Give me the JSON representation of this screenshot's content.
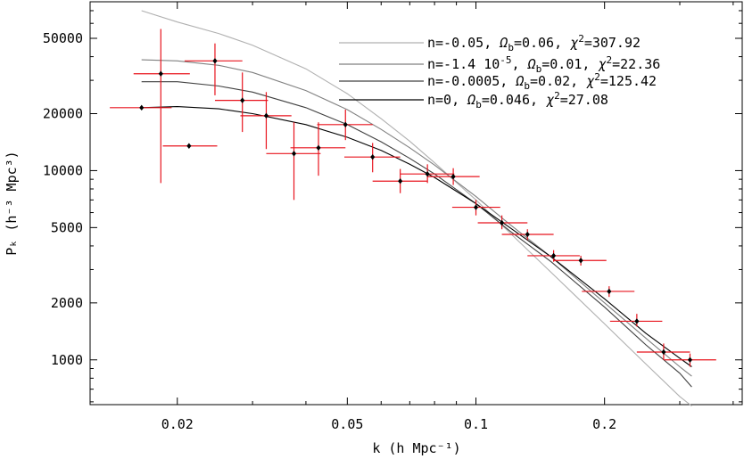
{
  "chart_data": {
    "type": "scatter",
    "x_scale": "log",
    "y_scale": "log",
    "xlim": [
      0.0125,
      0.42
    ],
    "ylim": [
      580,
      78000
    ],
    "xlabel": "k (h Mpc⁻¹)",
    "ylabel": "Pₖ (h⁻³ Mpc³)",
    "x_ticks": [
      0.02,
      0.05,
      0.1,
      0.2
    ],
    "x_tick_labels": [
      "0.02",
      "0.05",
      "0.1",
      "0.2"
    ],
    "y_ticks": [
      1000,
      2000,
      5000,
      10000,
      20000,
      50000
    ],
    "y_tick_labels": [
      "1000",
      "2000",
      "5000",
      "10000",
      "20000",
      "50000"
    ],
    "grid": false,
    "legend_position": "top-right",
    "points": [
      {
        "x": 0.0165,
        "y": 21500,
        "xerr": [
          0.0139,
          0.0194
        ],
        "yerr": [
          21500,
          21500
        ]
      },
      {
        "x": 0.0183,
        "y": 32500,
        "xerr": [
          0.0158,
          0.0214
        ],
        "yerr": [
          8600,
          56000
        ]
      },
      {
        "x": 0.0213,
        "y": 13500,
        "xerr": [
          0.0185,
          0.0248
        ],
        "yerr": [
          13500,
          13500
        ]
      },
      {
        "x": 0.0245,
        "y": 38000,
        "xerr": [
          0.0208,
          0.0284
        ],
        "yerr": [
          25000,
          47000
        ]
      },
      {
        "x": 0.0284,
        "y": 23500,
        "xerr": [
          0.0245,
          0.0326
        ],
        "yerr": [
          16000,
          33000
        ]
      },
      {
        "x": 0.0323,
        "y": 19500,
        "xerr": [
          0.0281,
          0.037
        ],
        "yerr": [
          13000,
          26000
        ]
      },
      {
        "x": 0.0375,
        "y": 12300,
        "xerr": [
          0.0323,
          0.0433
        ],
        "yerr": [
          7000,
          18000
        ]
      },
      {
        "x": 0.0428,
        "y": 13200,
        "xerr": [
          0.0368,
          0.0495
        ],
        "yerr": [
          9400,
          18000
        ]
      },
      {
        "x": 0.0495,
        "y": 17500,
        "xerr": [
          0.0425,
          0.0573
        ],
        "yerr": [
          14500,
          21000
        ]
      },
      {
        "x": 0.0573,
        "y": 11800,
        "xerr": [
          0.0492,
          0.0665
        ],
        "yerr": [
          9800,
          14000
        ]
      },
      {
        "x": 0.0665,
        "y": 8800,
        "xerr": [
          0.0573,
          0.077
        ],
        "yerr": [
          7600,
          10200
        ]
      },
      {
        "x": 0.077,
        "y": 9600,
        "xerr": [
          0.0665,
          0.089
        ],
        "yerr": [
          8600,
          10800
        ]
      },
      {
        "x": 0.0885,
        "y": 9300,
        "xerr": [
          0.077,
          0.102
        ],
        "yerr": [
          8400,
          10300
        ]
      },
      {
        "x": 0.1,
        "y": 6400,
        "xerr": [
          0.088,
          0.114
        ],
        "yerr": [
          5800,
          7000
        ]
      },
      {
        "x": 0.115,
        "y": 5300,
        "xerr": [
          0.101,
          0.132
        ],
        "yerr": [
          4900,
          5800
        ]
      },
      {
        "x": 0.132,
        "y": 4600,
        "xerr": [
          0.115,
          0.152
        ],
        "yerr": [
          4300,
          4900
        ]
      },
      {
        "x": 0.152,
        "y": 3550,
        "xerr": [
          0.132,
          0.175
        ],
        "yerr": [
          3300,
          3800
        ]
      },
      {
        "x": 0.176,
        "y": 3350,
        "xerr": [
          0.152,
          0.202
        ],
        "yerr": [
          3150,
          3550
        ]
      },
      {
        "x": 0.205,
        "y": 2300,
        "xerr": [
          0.177,
          0.235
        ],
        "yerr": [
          2150,
          2450
        ]
      },
      {
        "x": 0.238,
        "y": 1600,
        "xerr": [
          0.206,
          0.273
        ],
        "yerr": [
          1500,
          1750
        ]
      },
      {
        "x": 0.275,
        "y": 1100,
        "xerr": [
          0.238,
          0.317
        ],
        "yerr": [
          1000,
          1220
        ]
      },
      {
        "x": 0.317,
        "y": 1000,
        "xerr": [
          0.276,
          0.365
        ],
        "yerr": [
          920,
          1080
        ]
      }
    ],
    "series": [
      {
        "name": "n=-0.05, Ωb=0.06, χ²=307.92",
        "label_parts": [
          "n=-0.05, ",
          "Ω",
          "b",
          "=0.06, ",
          "χ",
          "2",
          "=307.92"
        ],
        "color": "#b0b0b0",
        "x": [
          0.0165,
          0.02,
          0.025,
          0.03,
          0.04,
          0.05,
          0.06,
          0.07,
          0.08,
          0.1,
          0.12,
          0.15,
          0.2,
          0.25,
          0.3,
          0.32
        ],
        "y": [
          70000,
          61000,
          53000,
          46000,
          34500,
          25500,
          18800,
          14300,
          11000,
          7000,
          4700,
          2900,
          1550,
          950,
          640,
          570
        ]
      },
      {
        "name": "n=-1.4 10⁻⁵, Ωb=0.01, χ²=22.36",
        "label_parts": [
          "n=-1.4 10",
          "-5",
          ", ",
          "Ω",
          "b",
          "=0.01, ",
          "χ",
          "2",
          "=22.36"
        ],
        "color": "#808080",
        "x": [
          0.0165,
          0.02,
          0.025,
          0.03,
          0.04,
          0.05,
          0.06,
          0.07,
          0.08,
          0.1,
          0.12,
          0.15,
          0.2,
          0.25,
          0.3,
          0.32
        ],
        "y": [
          38500,
          38000,
          36000,
          33000,
          26500,
          21000,
          16500,
          13200,
          10700,
          7300,
          5200,
          3500,
          2000,
          1300,
          920,
          820
        ]
      },
      {
        "name": "n=-0.0005, Ωb=0.02, χ²=125.42",
        "label_parts": [
          "n=-0.0005, ",
          "Ω",
          "b",
          "=0.02, ",
          "χ",
          "2",
          "=125.42"
        ],
        "color": "#404040",
        "x": [
          0.0165,
          0.02,
          0.025,
          0.03,
          0.04,
          0.05,
          0.06,
          0.07,
          0.08,
          0.1,
          0.12,
          0.15,
          0.2,
          0.25,
          0.3,
          0.32
        ],
        "y": [
          29500,
          29500,
          28000,
          26000,
          21500,
          17500,
          14200,
          11600,
          9600,
          6700,
          4800,
          3300,
          1900,
          1200,
          850,
          720
        ]
      },
      {
        "name": "n=0, Ωb=0.046, χ²=27.08",
        "label_parts": [
          "n=0, ",
          "Ω",
          "b",
          "=0.046, ",
          "χ",
          "2",
          "=27.08"
        ],
        "color": "#000000",
        "x": [
          0.0165,
          0.02,
          0.025,
          0.03,
          0.04,
          0.05,
          0.06,
          0.07,
          0.08,
          0.1,
          0.12,
          0.15,
          0.2,
          0.25,
          0.3,
          0.32
        ],
        "y": [
          21500,
          21800,
          21200,
          20000,
          17500,
          15000,
          12800,
          10800,
          9200,
          6700,
          5000,
          3500,
          2100,
          1380,
          1020,
          920
        ]
      }
    ],
    "point_color": "#000000",
    "errorbar_color": "#e8141e"
  }
}
